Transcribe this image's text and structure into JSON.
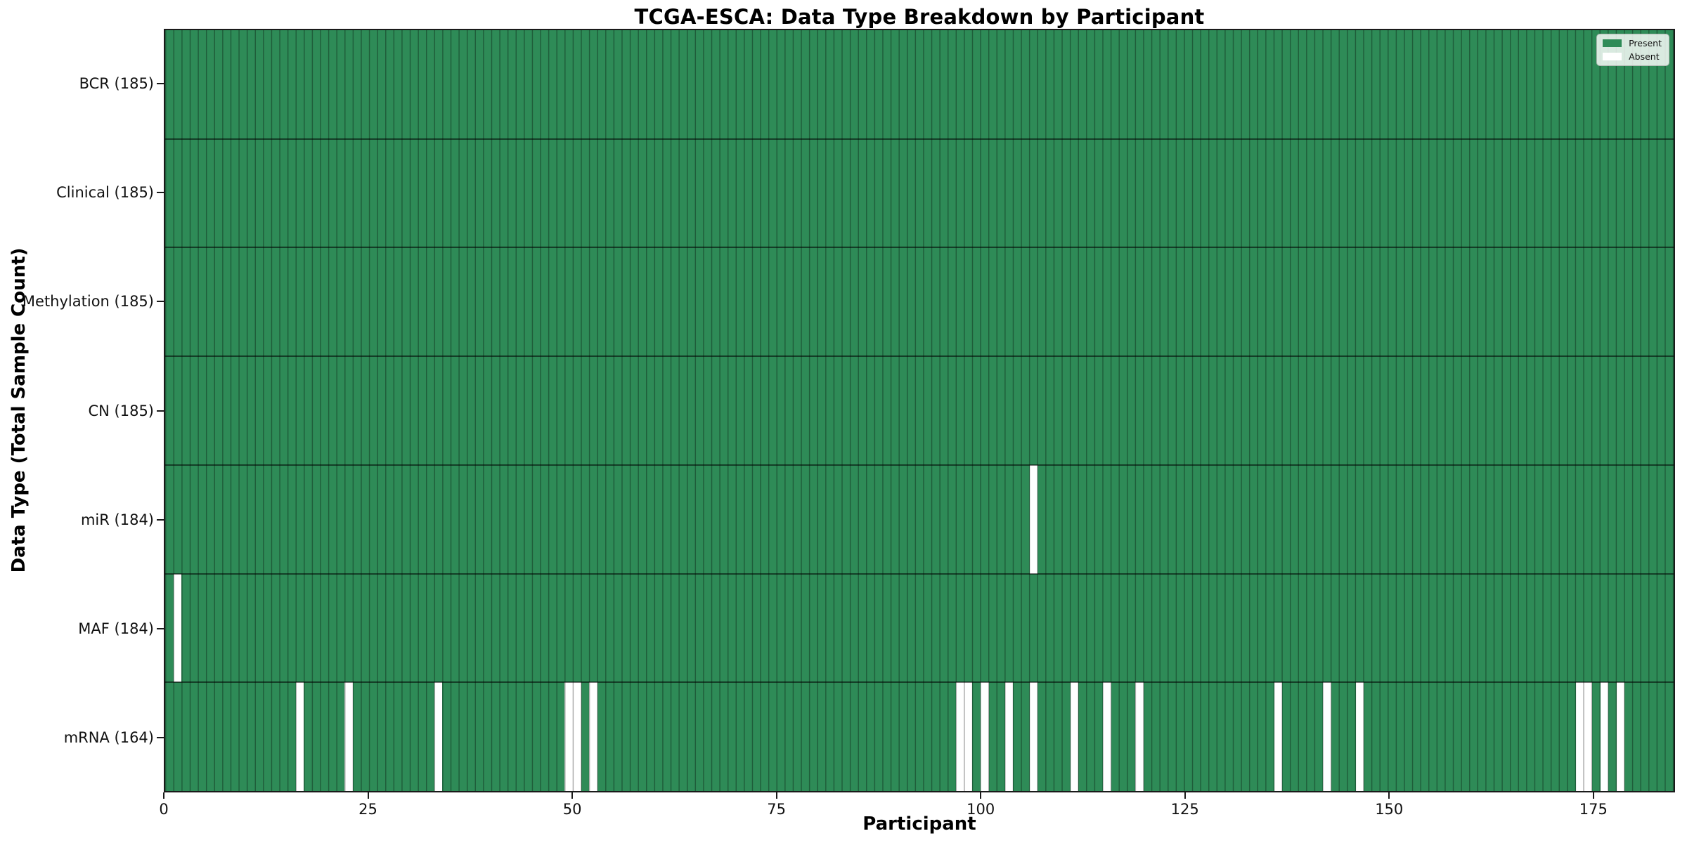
{
  "figure": {
    "kind": "static matplotlib-style figure",
    "background": "#ffffff"
  },
  "chart_data": {
    "type": "heatmap",
    "title": "TCGA-ESCA: Data Type Breakdown by Participant",
    "xlabel": "Participant",
    "ylabel": "Data Type (Total Sample Count)",
    "n_participants": 185,
    "x_range": [
      0,
      185
    ],
    "x_ticks": [
      0,
      25,
      50,
      75,
      100,
      125,
      150,
      175
    ],
    "grid": "vertical line at every participant column",
    "colors": {
      "present": "#2e8b57",
      "absent": "#ffffff",
      "gridline": "rgba(0,0,0,0.33)",
      "row_separator": "rgba(0,0,0,0.55)",
      "spine": "#1a1a1a"
    },
    "legend": {
      "position": "upper right",
      "entries": [
        {
          "label": "Present",
          "color": "#2e8b57"
        },
        {
          "label": "Absent",
          "color": "#ffffff"
        }
      ]
    },
    "rows": [
      {
        "label": "BCR (185)",
        "data_type": "BCR",
        "present_count": 185,
        "absent_participants": []
      },
      {
        "label": "Clinical (185)",
        "data_type": "Clinical",
        "present_count": 185,
        "absent_participants": []
      },
      {
        "label": "Methylation (185)",
        "data_type": "Methylation",
        "present_count": 185,
        "absent_participants": []
      },
      {
        "label": "CN (185)",
        "data_type": "CN",
        "present_count": 185,
        "absent_participants": []
      },
      {
        "label": "miR (184)",
        "data_type": "miR",
        "present_count": 184,
        "absent_participants": [
          106
        ]
      },
      {
        "label": "MAF (184)",
        "data_type": "MAF",
        "present_count": 184,
        "absent_participants": [
          1
        ]
      },
      {
        "label": "mRNA (164)",
        "data_type": "mRNA",
        "present_count": 164,
        "absent_participants": [
          16,
          22,
          33,
          49,
          50,
          52,
          97,
          98,
          100,
          103,
          106,
          111,
          115,
          119,
          136,
          142,
          146,
          173,
          174,
          176,
          178
        ]
      }
    ]
  }
}
